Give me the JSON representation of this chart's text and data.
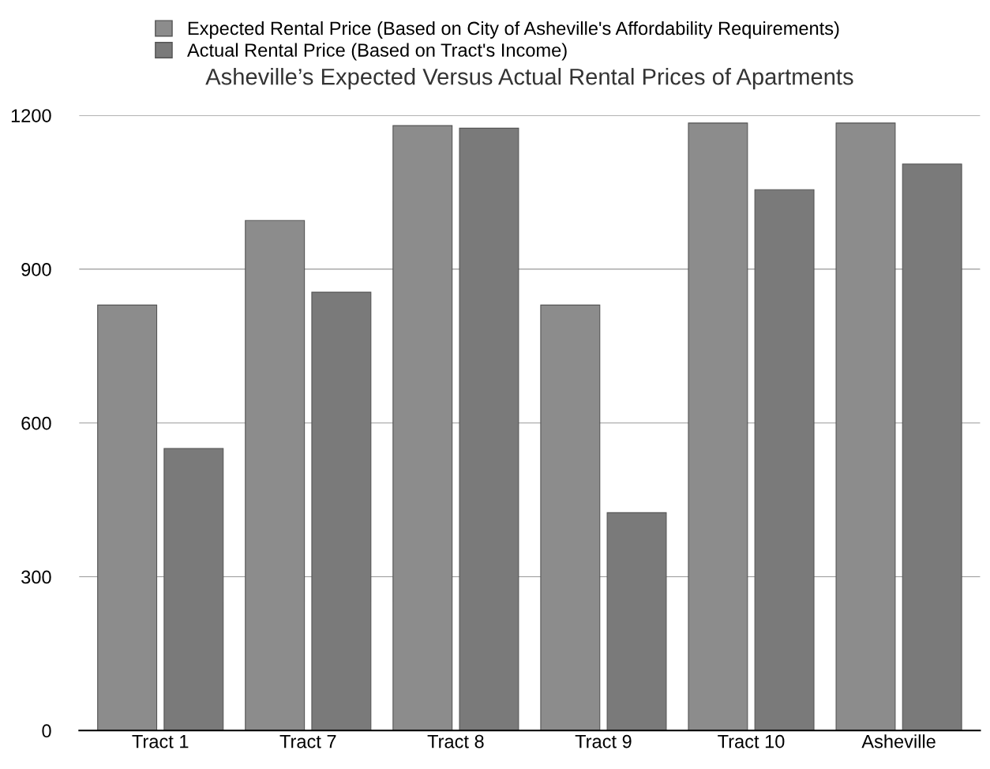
{
  "chart_data": {
    "type": "bar",
    "title": "Asheville’s Expected Versus Actual Rental Prices of Apartments",
    "categories": [
      "Tract 1",
      "Tract 7",
      "Tract 8",
      "Tract 9",
      "Tract 10",
      "Asheville"
    ],
    "series": [
      {
        "name": "Expected Rental Price (Based on City of Asheville's Affordability Requirements)",
        "color": "#8c8c8c",
        "values": [
          830,
          995,
          1180,
          830,
          1185,
          1185
        ]
      },
      {
        "name": "Actual Rental Price (Based on Tract's Income)",
        "color": "#7a7a7a",
        "values": [
          550,
          855,
          1175,
          425,
          1055,
          1105
        ]
      }
    ],
    "ylim": [
      0,
      1200
    ],
    "yticks": [
      0,
      300,
      600,
      900,
      1200
    ],
    "grid": "y",
    "legend": "top left"
  }
}
